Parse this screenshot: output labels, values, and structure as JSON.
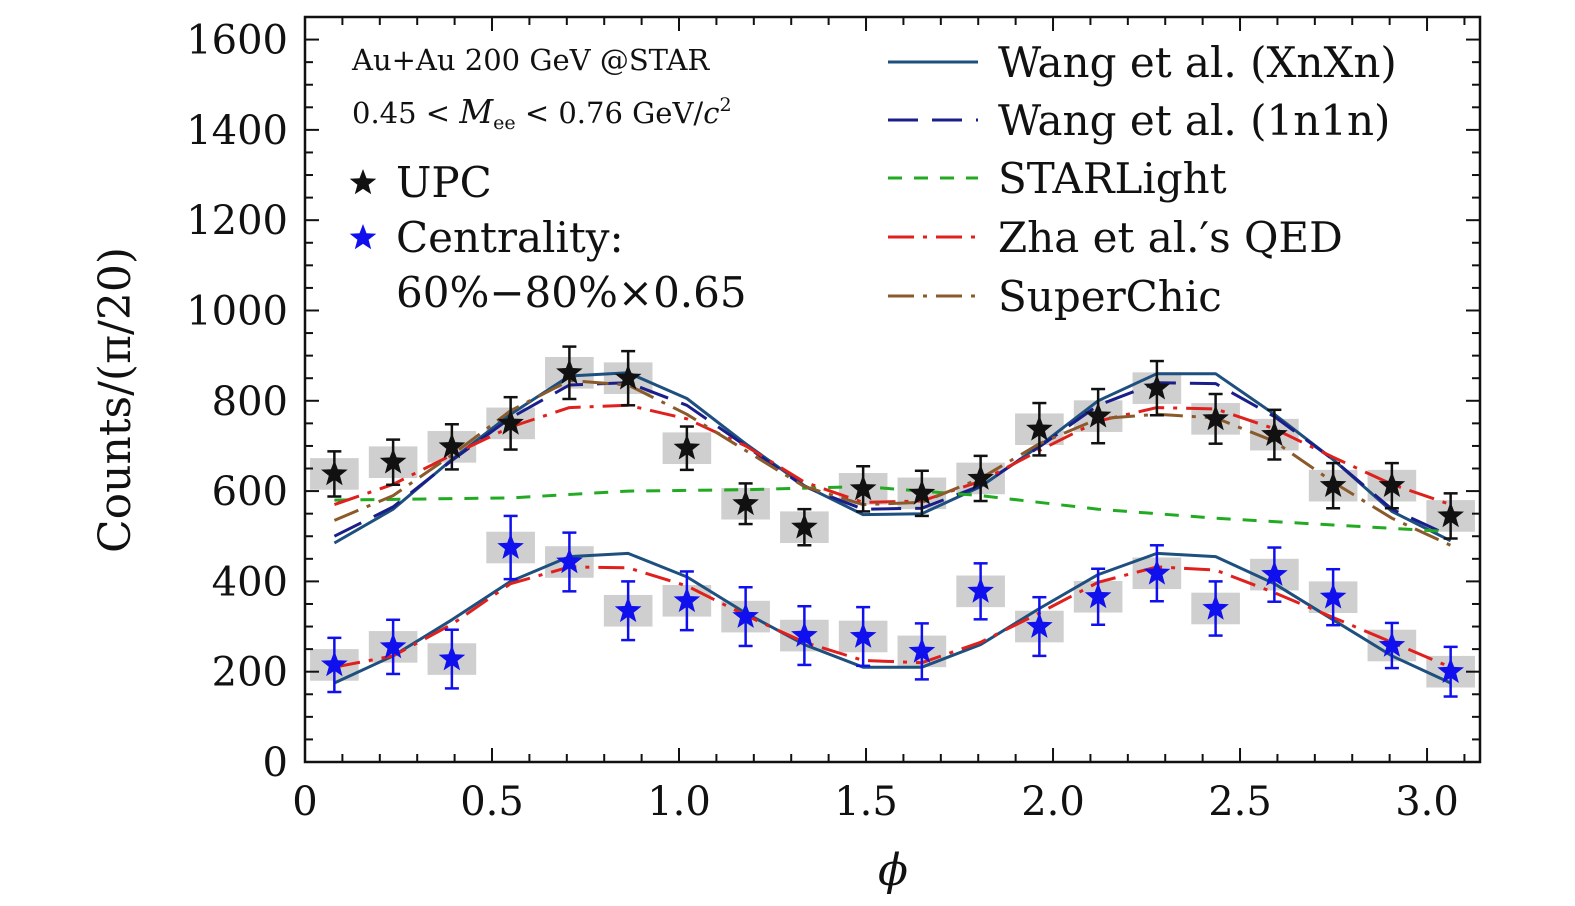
{
  "chart_data": {
    "type": "scatter",
    "xlabel": "ϕ",
    "ylabel": "Counts/(π/20)",
    "xlim": [
      0,
      3.1416
    ],
    "ylim": [
      0,
      1650
    ],
    "x_ticks": [
      "0",
      "0.5",
      "1.0",
      "1.5",
      "2.0",
      "2.5",
      "3.0"
    ],
    "x_tick_values": [
      0,
      0.5,
      1.0,
      1.5,
      2.0,
      2.5,
      3.0
    ],
    "y_ticks": [
      "0",
      "200",
      "400",
      "600",
      "800",
      "1000",
      "1200",
      "1400",
      "1600"
    ],
    "y_tick_values": [
      0,
      200,
      400,
      600,
      800,
      1000,
      1200,
      1400,
      1600
    ],
    "grid": false,
    "legend_position": "top",
    "annotations": {
      "line1": "Au+Au 200 GeV @STAR",
      "line2_prefix": "0.45 < ",
      "line2_var": "M",
      "line2_sub": "ee",
      "line2_mid": " < 0.76 GeV/",
      "line2_c": "c",
      "line2_sup": "2"
    },
    "data_series": [
      {
        "name": "UPC",
        "label": "UPC",
        "color": "#111111",
        "marker": "star",
        "x": [
          0.0785,
          0.2356,
          0.3927,
          0.5498,
          0.7069,
          0.864,
          1.021,
          1.1781,
          1.3352,
          1.4923,
          1.6493,
          1.8064,
          1.9635,
          2.1206,
          2.2777,
          2.4347,
          2.5918,
          2.7489,
          2.906,
          3.0631
        ],
        "y": [
          638,
          664,
          698,
          750,
          862,
          850,
          695,
          572,
          520,
          605,
          595,
          628,
          737,
          766,
          828,
          760,
          725,
          612,
          612,
          545
        ],
        "yerr": [
          50,
          50,
          50,
          58,
          58,
          60,
          48,
          45,
          40,
          50,
          50,
          50,
          58,
          60,
          60,
          55,
          55,
          50,
          50,
          50
        ],
        "box_width": 0.13,
        "box_half_height": 35
      },
      {
        "name": "Centrality",
        "label_line1": "Centrality:",
        "label_line2": "60%−80%×0.65",
        "color": "#1010ee",
        "marker": "star",
        "x": [
          0.0785,
          0.2356,
          0.3927,
          0.5498,
          0.7069,
          0.864,
          1.021,
          1.1781,
          1.3352,
          1.4923,
          1.6493,
          1.8064,
          1.9635,
          2.1206,
          2.2777,
          2.4347,
          2.5918,
          2.7489,
          2.906,
          3.0631
        ],
        "y": [
          215,
          255,
          228,
          475,
          443,
          335,
          357,
          322,
          280,
          278,
          245,
          378,
          300,
          366,
          418,
          340,
          415,
          365,
          258,
          200
        ],
        "yerr": [
          60,
          60,
          65,
          70,
          65,
          65,
          65,
          65,
          65,
          65,
          62,
          62,
          65,
          62,
          62,
          60,
          60,
          62,
          50,
          55
        ],
        "box_width": 0.13,
        "box_half_height": 35
      }
    ],
    "model_curves": [
      {
        "name": "Wang et al. (XnXn)",
        "color": "#1d4f7f",
        "dash": "solid",
        "x": [
          0.0785,
          0.2356,
          0.3927,
          0.5498,
          0.7069,
          0.864,
          1.021,
          1.1781,
          1.3352,
          1.4923,
          1.6493,
          1.8064,
          1.9635,
          2.1206,
          2.2777,
          2.4347,
          2.5918,
          2.7489,
          2.906,
          3.0631
        ],
        "y": [
          485,
          560,
          670,
          770,
          855,
          862,
          805,
          705,
          612,
          548,
          550,
          610,
          700,
          800,
          860,
          860,
          770,
          670,
          555,
          490
        ]
      },
      {
        "name": "Wang et al. (1n1n)",
        "color": "#1a1e8a",
        "dash": "long",
        "x": [
          0.0785,
          0.2356,
          0.3927,
          0.5498,
          0.7069,
          0.864,
          1.021,
          1.1781,
          1.3352,
          1.4923,
          1.6493,
          1.8064,
          1.9635,
          2.1206,
          2.2777,
          2.4347,
          2.5918,
          2.7489,
          2.906,
          3.0631
        ],
        "y": [
          500,
          565,
          668,
          762,
          835,
          840,
          790,
          700,
          610,
          560,
          562,
          612,
          698,
          790,
          840,
          838,
          765,
          670,
          560,
          500
        ]
      },
      {
        "name": "STARLight",
        "color": "#22aa22",
        "dash": "short",
        "x": [
          0.0785,
          0.5498,
          0.864,
          1.1781,
          1.4923,
          1.8064,
          2.1206,
          2.4347,
          2.7489,
          3.0631
        ],
        "y": [
          580,
          585,
          600,
          603,
          610,
          590,
          560,
          540,
          525,
          510
        ]
      },
      {
        "name": "Zha et al.'s QED",
        "label_prefix": "Zha et al.",
        "label_suffix": "s QED",
        "color": "#e0201c",
        "dash": "dashdot",
        "x": [
          0.0785,
          0.2356,
          0.3927,
          0.5498,
          0.7069,
          0.864,
          1.021,
          1.1781,
          1.3352,
          1.4923,
          1.6493,
          1.8064,
          1.9635,
          2.1206,
          2.2777,
          2.4347,
          2.5918,
          2.7489,
          2.906,
          3.0631
        ],
        "y": [
          570,
          615,
          680,
          742,
          785,
          790,
          760,
          700,
          620,
          575,
          578,
          622,
          690,
          755,
          785,
          782,
          738,
          675,
          615,
          570
        ]
      },
      {
        "name": "SuperChic",
        "color": "#8b5a2b",
        "dash": "dashdot",
        "x": [
          0.0785,
          0.2356,
          0.3927,
          0.5498,
          0.7069,
          0.864,
          1.021,
          1.1781,
          1.3352,
          1.4923,
          1.6493,
          1.8064,
          1.9635,
          2.1206,
          2.2777,
          2.4347,
          2.5918,
          2.7489,
          2.906,
          3.0631
        ],
        "y": [
          535,
          590,
          680,
          778,
          845,
          835,
          770,
          690,
          610,
          570,
          575,
          628,
          705,
          760,
          770,
          762,
          710,
          620,
          540,
          480
        ]
      },
      {
        "name": "Wang et al. (XnXn) centrality",
        "color": "#1d4f7f",
        "dash": "solid",
        "x": [
          0.0785,
          0.2356,
          0.3927,
          0.5498,
          0.7069,
          0.864,
          1.021,
          1.1781,
          1.3352,
          1.4923,
          1.6493,
          1.8064,
          1.9635,
          2.1206,
          2.2777,
          2.4347,
          2.5918,
          2.7489,
          2.906,
          3.0631
        ],
        "y": [
          175,
          235,
          315,
          400,
          455,
          462,
          410,
          330,
          260,
          210,
          210,
          260,
          340,
          415,
          462,
          455,
          395,
          315,
          235,
          175
        ]
      },
      {
        "name": "Zha et al.'s QED centrality",
        "color": "#e0201c",
        "dash": "dashdot",
        "x": [
          0.0785,
          0.2356,
          0.3927,
          0.5498,
          0.7069,
          0.864,
          1.021,
          1.1781,
          1.3352,
          1.4923,
          1.6493,
          1.8064,
          1.9635,
          2.1206,
          2.2777,
          2.4347,
          2.5918,
          2.7489,
          2.906,
          3.0631
        ],
        "y": [
          210,
          235,
          305,
          395,
          432,
          430,
          390,
          325,
          265,
          225,
          220,
          265,
          330,
          398,
          432,
          425,
          375,
          320,
          265,
          210
        ]
      }
    ]
  }
}
